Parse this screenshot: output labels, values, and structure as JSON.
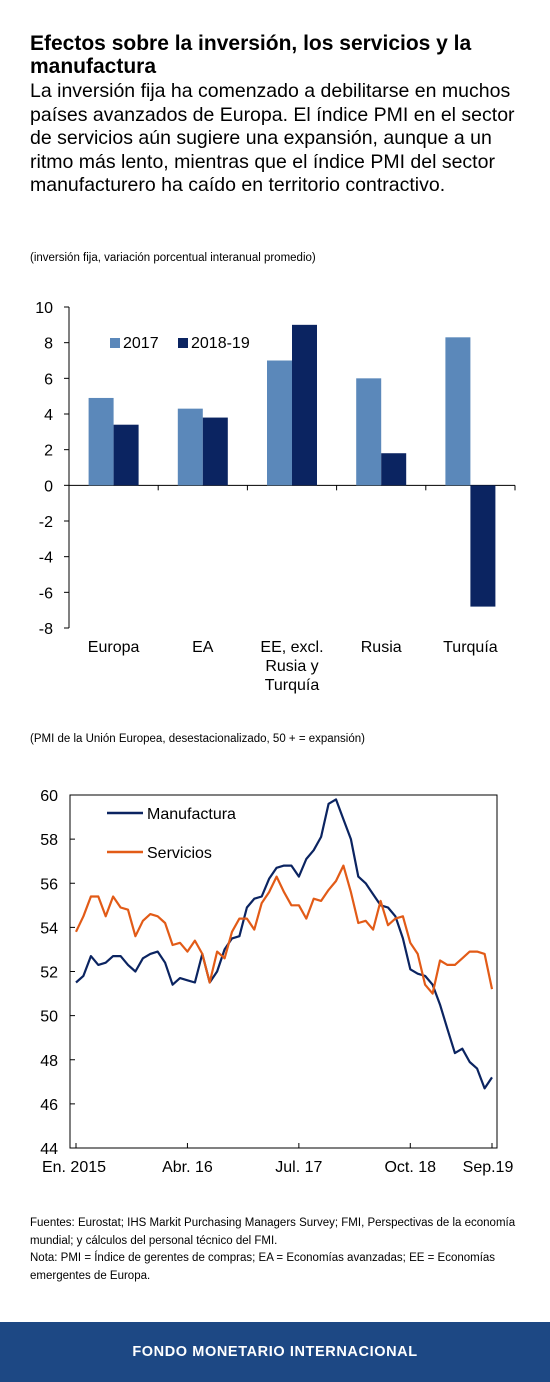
{
  "header": {
    "title": "Efectos sobre la inversión, los servicios y la manufactura",
    "subtitle": "La inversión fija ha comenzado a debilitarse en muchos países avanzados de Europa. El índice PMI en el sector de servicios aún sugiere una expansión, aunque a un ritmo más lento, mientras que el índice PMI del sector manufacturero ha caído en territorio contractivo."
  },
  "chart_data": [
    {
      "type": "bar",
      "note": "(inversión fija, variación porcentual interanual promedio)",
      "categories": [
        [
          "Europa"
        ],
        [
          "EA"
        ],
        [
          "EE, excl.",
          "Rusia y",
          "Turquía"
        ],
        [
          "Rusia"
        ],
        [
          "Turquía"
        ]
      ],
      "series": [
        {
          "name": "2017",
          "color": "#5b88ba",
          "values": [
            4.9,
            4.3,
            7.0,
            6.0,
            8.3
          ]
        },
        {
          "name": "2018-19",
          "color": "#0b2461",
          "values": [
            3.4,
            3.8,
            9.0,
            1.8,
            -6.8
          ]
        }
      ],
      "ylim": [
        -8,
        10
      ],
      "yticks": [
        10,
        8,
        6,
        4,
        2,
        0,
        -2,
        -4,
        -6,
        -8
      ],
      "legend_position": "top-left",
      "grid": false
    },
    {
      "type": "line",
      "note": "(PMI de la Unión Europea, desestacionalizado, 50 + = expansión)",
      "x_start": "2015-01",
      "x_tick_labels": [
        "En. 2015",
        "Abr. 16",
        "Jul. 17",
        "Oct. 18",
        "Sep.19"
      ],
      "x_tick_index": [
        0,
        15,
        30,
        45,
        56
      ],
      "ylim": [
        44,
        60
      ],
      "yticks": [
        60,
        58,
        56,
        54,
        52,
        50,
        48,
        46,
        44
      ],
      "legend_position": "top-left",
      "grid": false,
      "series": [
        {
          "name": "Manufactura",
          "color": "#0b2461",
          "values": [
            51.5,
            51.8,
            52.7,
            52.3,
            52.4,
            52.7,
            52.7,
            52.3,
            52.0,
            52.6,
            52.8,
            52.9,
            52.4,
            51.4,
            51.7,
            51.6,
            51.5,
            52.8,
            51.5,
            52.0,
            53.0,
            53.5,
            53.6,
            54.9,
            55.3,
            55.4,
            56.2,
            56.7,
            56.8,
            56.8,
            56.3,
            57.1,
            57.5,
            58.1,
            59.6,
            59.8,
            58.9,
            58.0,
            56.3,
            56.0,
            55.5,
            55.0,
            54.9,
            54.5,
            53.5,
            52.1,
            51.9,
            51.8,
            51.4,
            50.5,
            49.4,
            48.3,
            48.5,
            47.9,
            47.6,
            46.7,
            47.2
          ]
        },
        {
          "name": "Servicios",
          "color": "#e25b17",
          "values": [
            53.8,
            54.5,
            55.4,
            55.4,
            54.5,
            55.4,
            54.9,
            54.8,
            53.6,
            54.3,
            54.6,
            54.5,
            54.2,
            53.2,
            53.3,
            52.9,
            53.4,
            52.8,
            51.5,
            52.9,
            52.6,
            53.8,
            54.4,
            54.4,
            53.9,
            55.1,
            55.6,
            56.3,
            55.6,
            55.0,
            55.0,
            54.4,
            55.3,
            55.2,
            55.7,
            56.1,
            56.8,
            55.6,
            54.2,
            54.3,
            53.9,
            55.2,
            54.1,
            54.4,
            54.5,
            53.3,
            52.8,
            51.4,
            51.0,
            52.5,
            52.3,
            52.3,
            52.6,
            52.9,
            52.9,
            52.8,
            51.2
          ]
        }
      ]
    }
  ],
  "footnotes": {
    "sources": "Fuentes: Eurostat; IHS Markit Purchasing Managers Survey; FMI, Perspectivas de la economía mundial; y cálculos del personal técnico del FMI.",
    "note": "Nota: PMI = Índice de gerentes de compras; EA = Economías avanzadas; EE = Economías emergentes de Europa."
  },
  "footer": {
    "label": "FONDO MONETARIO INTERNACIONAL",
    "color": "#1d4884"
  }
}
